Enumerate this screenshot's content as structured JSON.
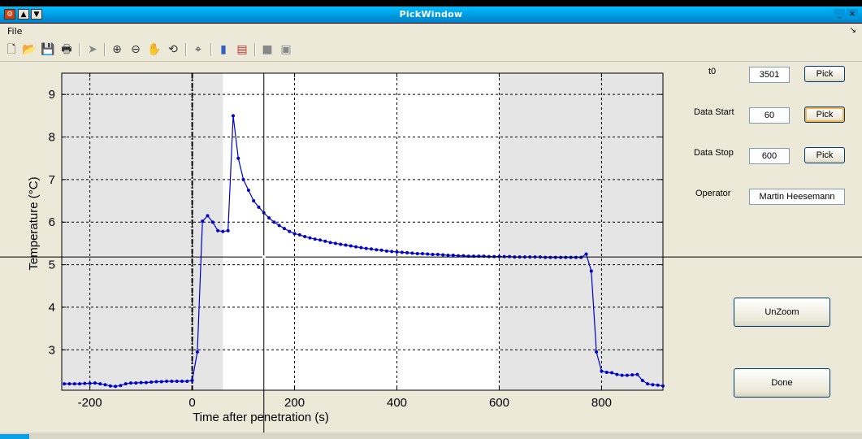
{
  "window": {
    "title": "PickWindow"
  },
  "menu": {
    "file": "File",
    "corner_icon": "dock-arrow-icon"
  },
  "toolbar": {
    "icons": [
      "new-file-icon",
      "open-file-icon",
      "save-icon",
      "print-icon",
      "edit-plot-icon",
      "zoom-in-icon",
      "zoom-out-icon",
      "pan-icon",
      "rotate-3d-icon",
      "data-cursor-icon",
      "colorbar-icon",
      "legend-icon",
      "hide-plot-tools-icon",
      "show-plot-tools-icon"
    ]
  },
  "panel": {
    "t0_label": "t0",
    "t0_value": "3501",
    "data_start_label": "Data Start",
    "data_start_value": "60",
    "data_stop_label": "Data Stop",
    "data_stop_value": "600",
    "operator_label": "Operator",
    "operator_value": "Martin Heesemann",
    "pick_label": "Pick",
    "unzoom_label": "UnZoom",
    "done_label": "Done"
  },
  "chart_data": {
    "type": "line",
    "xlabel": "Time after penetration (s)",
    "ylabel": "Temperature (°C)",
    "xlim": [
      -255,
      920
    ],
    "ylim": [
      2.05,
      9.5
    ],
    "xticks": [
      -200,
      0,
      200,
      400,
      600,
      800
    ],
    "xtick_labels": [
      "-200",
      "0",
      "200",
      "400",
      "600",
      "800"
    ],
    "yticks": [
      3,
      4,
      5,
      6,
      7,
      8,
      9
    ],
    "ytick_labels": [
      "3",
      "4",
      "5",
      "6",
      "7",
      "8",
      "9"
    ],
    "grid": true,
    "shaded_regions": [
      [
        -255,
        60
      ],
      [
        600,
        920
      ]
    ],
    "t0_marker": 0,
    "crosshair": {
      "x": 140,
      "y": 5.18
    },
    "colors": {
      "line": "#0000cc",
      "shade": "#e5e5e5",
      "plot_bg": "#ffffff"
    },
    "series": [
      {
        "x": [
          -250,
          -240,
          -230,
          -220,
          -210,
          -200,
          -190,
          -180,
          -170,
          -160,
          -150,
          -140,
          -130,
          -120,
          -110,
          -100,
          -90,
          -80,
          -70,
          -60,
          -50,
          -40,
          -30,
          -20,
          -10,
          0,
          10,
          20,
          30,
          40,
          50,
          60,
          70,
          80,
          90,
          100,
          110,
          120,
          130,
          140,
          150,
          160,
          170,
          180,
          190,
          200,
          210,
          220,
          230,
          240,
          250,
          260,
          270,
          280,
          290,
          300,
          310,
          320,
          330,
          340,
          350,
          360,
          370,
          380,
          390,
          400,
          410,
          420,
          430,
          440,
          450,
          460,
          470,
          480,
          490,
          500,
          510,
          520,
          530,
          540,
          550,
          560,
          570,
          580,
          590,
          600,
          610,
          620,
          630,
          640,
          650,
          660,
          670,
          680,
          690,
          700,
          710,
          720,
          730,
          740,
          750,
          760,
          770,
          780,
          790,
          800,
          810,
          820,
          830,
          840,
          850,
          860,
          870,
          880,
          890,
          900,
          910,
          920
        ],
        "y": [
          2.2,
          2.2,
          2.2,
          2.2,
          2.21,
          2.21,
          2.22,
          2.2,
          2.18,
          2.15,
          2.14,
          2.16,
          2.2,
          2.22,
          2.22,
          2.23,
          2.23,
          2.24,
          2.25,
          2.25,
          2.26,
          2.26,
          2.26,
          2.26,
          2.26,
          2.28,
          2.95,
          6.02,
          6.15,
          6.0,
          5.8,
          5.78,
          5.8,
          8.5,
          7.5,
          7.0,
          6.75,
          6.5,
          6.35,
          6.22,
          6.1,
          6.0,
          5.92,
          5.85,
          5.78,
          5.73,
          5.7,
          5.66,
          5.63,
          5.6,
          5.58,
          5.55,
          5.52,
          5.5,
          5.48,
          5.46,
          5.44,
          5.42,
          5.4,
          5.38,
          5.37,
          5.35,
          5.34,
          5.32,
          5.31,
          5.3,
          5.29,
          5.28,
          5.27,
          5.26,
          5.26,
          5.25,
          5.24,
          5.24,
          5.23,
          5.22,
          5.22,
          5.21,
          5.21,
          5.2,
          5.2,
          5.2,
          5.2,
          5.19,
          5.19,
          5.19,
          5.19,
          5.19,
          5.18,
          5.18,
          5.18,
          5.18,
          5.18,
          5.18,
          5.17,
          5.17,
          5.17,
          5.17,
          5.17,
          5.17,
          5.17,
          5.17,
          5.25,
          4.85,
          2.95,
          2.5,
          2.47,
          2.46,
          2.42,
          2.4,
          2.4,
          2.41,
          2.42,
          2.28,
          2.2,
          2.18,
          2.17,
          2.15
        ]
      }
    ]
  }
}
